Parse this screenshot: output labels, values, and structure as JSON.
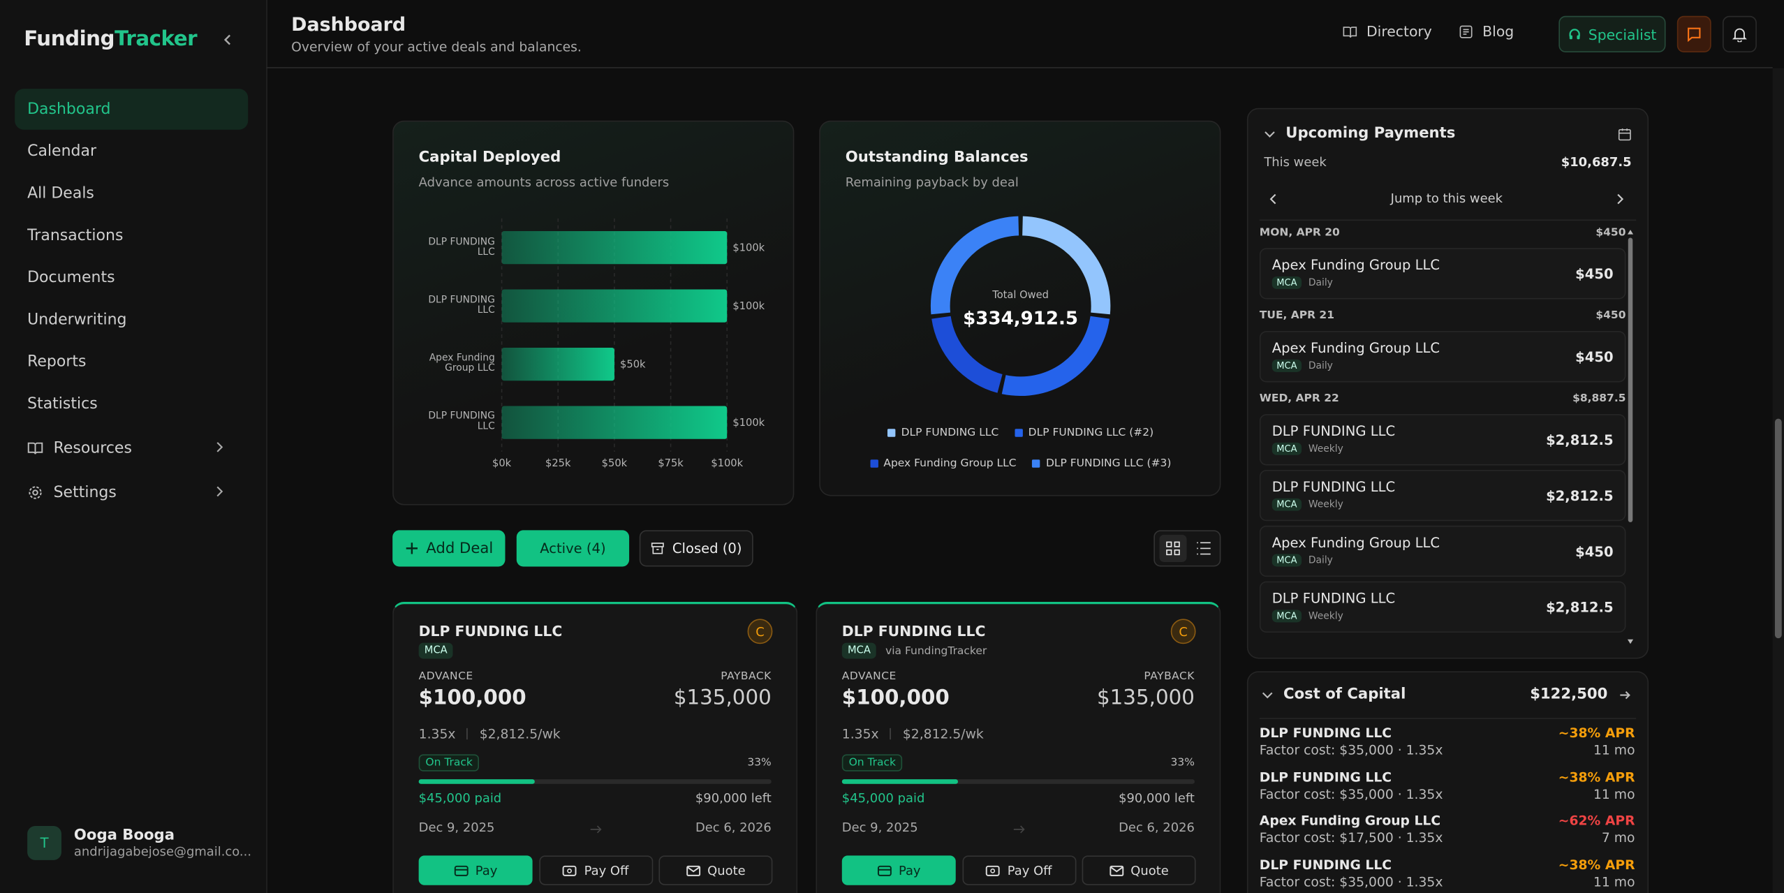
{
  "sidebar": {
    "brand_a": "Funding",
    "brand_b": "Tracker",
    "nav": [
      "Dashboard",
      "Calendar",
      "All Deals",
      "Transactions",
      "Documents",
      "Underwriting",
      "Reports",
      "Statistics"
    ],
    "nav_groups": [
      "Resources",
      "Settings"
    ],
    "user": {
      "avatar": "T",
      "name": "Ooga Booga",
      "email": "andrijagabejose@gmail.co..."
    }
  },
  "header": {
    "title": "Dashboard",
    "subtitle": "Overview of your active deals and balances.",
    "links": [
      "Directory",
      "Blog"
    ],
    "specialist": "Specialist"
  },
  "capital_chart": {
    "type": "bar",
    "title": "Capital Deployed",
    "subtitle": "Advance amounts across active funders",
    "categories": [
      "DLP FUNDING LLC",
      "DLP FUNDING LLC",
      "Apex Funding Group LLC",
      "DLP FUNDING LLC"
    ],
    "values": [
      100000,
      100000,
      50000,
      100000
    ],
    "value_labels": [
      "$100k",
      "$100k",
      "$50k",
      "$100k"
    ],
    "xlim": [
      0,
      100000
    ],
    "xticks": [
      {
        "value": 0,
        "label": "$0k"
      },
      {
        "value": 25000,
        "label": "$25k"
      },
      {
        "value": 50000,
        "label": "$50k"
      },
      {
        "value": 75000,
        "label": "$75k"
      },
      {
        "value": 100000,
        "label": "$100k"
      }
    ],
    "grid": true,
    "color": "#10c98a"
  },
  "balance_chart": {
    "type": "donut",
    "title": "Outstanding Balances",
    "subtitle": "Remaining payback by deal",
    "center_label": "Total Owed",
    "center_value": "$334,912.5",
    "series": [
      {
        "name": "DLP FUNDING LLC",
        "color": "#93c5fd",
        "value": 90000
      },
      {
        "name": "DLP FUNDING LLC (#2)",
        "color": "#2563eb",
        "value": 90000
      },
      {
        "name": "Apex Funding Group LLC",
        "color": "#1d4ed8",
        "value": 64912.5
      },
      {
        "name": "DLP FUNDING LLC (#3)",
        "color": "#3b82f6",
        "value": 90000
      }
    ]
  },
  "toolbar": {
    "add": "Add Deal",
    "active": "Active (4)",
    "closed": "Closed (0)"
  },
  "deals": [
    {
      "name": "DLP FUNDING LLC",
      "grade": "C",
      "tag": "MCA",
      "advance_label": "ADVANCE",
      "advance": "$100,000",
      "payback_label": "PAYBACK",
      "payback": "$135,000",
      "factor": "1.35x",
      "rate": "$2,812.5/wk",
      "status": "On Track",
      "progress": 33,
      "progress_label": "33%",
      "paid": "$45,000 paid",
      "left": "$90,000 left",
      "start": "Dec 9, 2025",
      "end": "Dec 6, 2026",
      "actions": [
        "Pay",
        "Pay Off",
        "Quote"
      ]
    },
    {
      "name": "DLP FUNDING LLC",
      "grade": "C",
      "tag": "MCA",
      "via": "via FundingTracker",
      "advance_label": "ADVANCE",
      "advance": "$100,000",
      "payback_label": "PAYBACK",
      "payback": "$135,000",
      "factor": "1.35x",
      "rate": "$2,812.5/wk",
      "status": "On Track",
      "progress": 33,
      "progress_label": "33%",
      "paid": "$45,000 paid",
      "left": "$90,000 left",
      "start": "Dec 9, 2025",
      "end": "Dec 6, 2026",
      "actions": [
        "Pay",
        "Pay Off",
        "Quote"
      ]
    }
  ],
  "upcoming": {
    "title": "Upcoming Payments",
    "week_label": "This week",
    "week_total": "$10,687.5",
    "jump": "Jump to this week",
    "days": [
      {
        "date": "MON, APR 20",
        "total": "$450",
        "items": [
          {
            "name": "Apex Funding Group LLC",
            "tag": "MCA",
            "freq": "Daily",
            "amount": "$450"
          }
        ]
      },
      {
        "date": "TUE, APR 21",
        "total": "$450",
        "items": [
          {
            "name": "Apex Funding Group LLC",
            "tag": "MCA",
            "freq": "Daily",
            "amount": "$450"
          }
        ]
      },
      {
        "date": "WED, APR 22",
        "total": "$8,887.5",
        "items": [
          {
            "name": "DLP FUNDING LLC",
            "tag": "MCA",
            "freq": "Weekly",
            "amount": "$2,812.5"
          },
          {
            "name": "DLP FUNDING LLC",
            "tag": "MCA",
            "freq": "Weekly",
            "amount": "$2,812.5"
          },
          {
            "name": "Apex Funding Group LLC",
            "tag": "MCA",
            "freq": "Daily",
            "amount": "$450"
          },
          {
            "name": "DLP FUNDING LLC",
            "tag": "MCA",
            "freq": "Weekly",
            "amount": "$2,812.5"
          }
        ]
      }
    ]
  },
  "cost": {
    "title": "Cost of Capital",
    "total": "$122,500",
    "rows": [
      {
        "name": "DLP FUNDING LLC",
        "detail": "Factor cost: $35,000 · 1.35x",
        "apr": "~38% APR",
        "color": "#f59e0b",
        "term": "11 mo"
      },
      {
        "name": "DLP FUNDING LLC",
        "detail": "Factor cost: $35,000 · 1.35x",
        "apr": "~38% APR",
        "color": "#f59e0b",
        "term": "11 mo"
      },
      {
        "name": "Apex Funding Group LLC",
        "detail": "Factor cost: $17,500 · 1.35x",
        "apr": "~62% APR",
        "color": "#ef4444",
        "term": "7 mo"
      },
      {
        "name": "DLP FUNDING LLC",
        "detail": "Factor cost: $35,000 · 1.35x",
        "apr": "~38% APR",
        "color": "#f59e0b",
        "term": "11 mo"
      }
    ]
  }
}
